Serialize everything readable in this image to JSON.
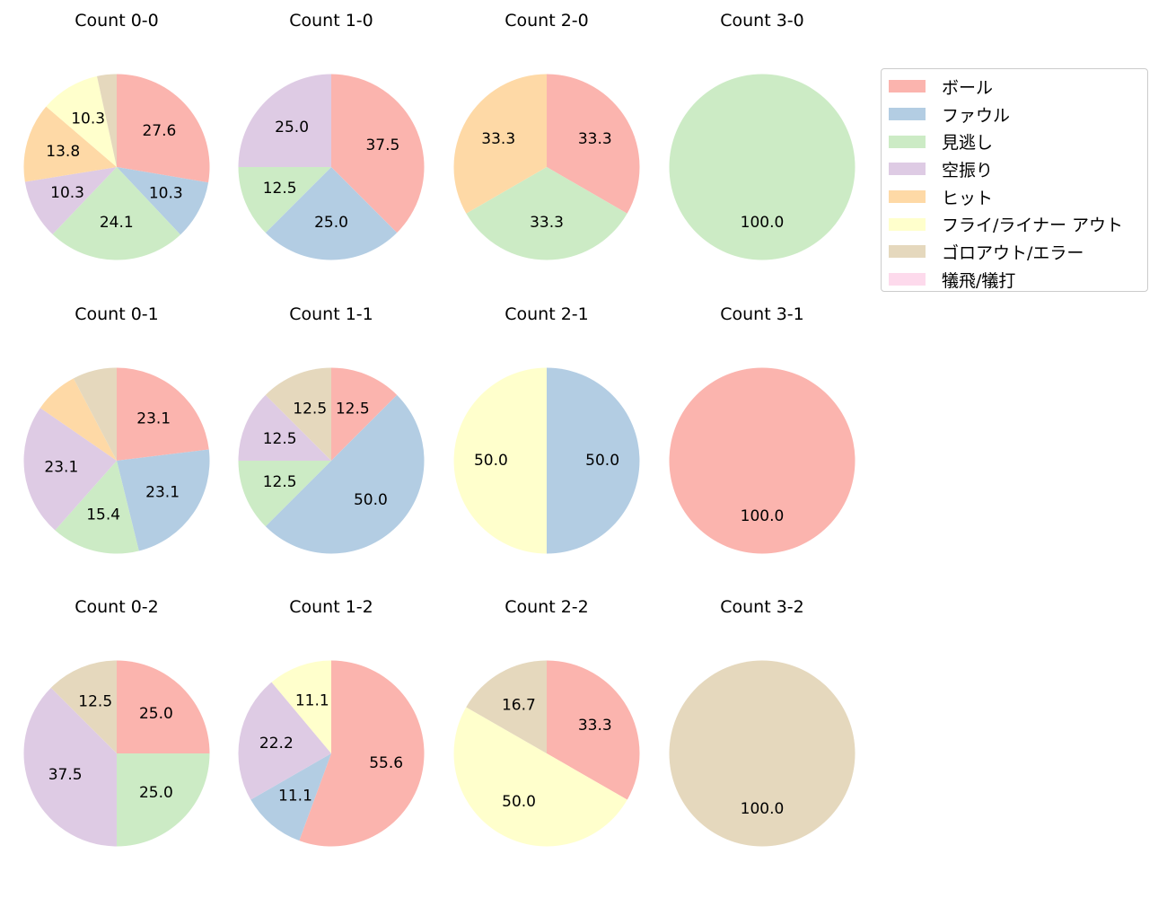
{
  "chart_data": {
    "type": "pie",
    "categories": [
      "ボール",
      "ファウル",
      "見逃し",
      "空振り",
      "ヒット",
      "フライ/ライナー アウト",
      "ゴロアウト/エラー",
      "犠飛/犠打"
    ],
    "colors": [
      "#fbb4ae",
      "#b3cde3",
      "#ccebc5",
      "#decbe4",
      "#fed9a6",
      "#ffffcc",
      "#e5d8bd",
      "#fddaec"
    ],
    "legend_position": "top-right",
    "charts": [
      {
        "title": "Count 0-0",
        "values": [
          27.6,
          10.3,
          24.1,
          10.3,
          13.8,
          10.3,
          3.4,
          0
        ]
      },
      {
        "title": "Count 1-0",
        "values": [
          37.5,
          25.0,
          12.5,
          25.0,
          0,
          0,
          0,
          0
        ]
      },
      {
        "title": "Count 2-0",
        "values": [
          33.3,
          0,
          33.3,
          0,
          33.3,
          0,
          0,
          0
        ]
      },
      {
        "title": "Count 3-0",
        "values": [
          0,
          0,
          100.0,
          0,
          0,
          0,
          0,
          0
        ]
      },
      {
        "title": "Count 0-1",
        "values": [
          23.1,
          23.1,
          15.4,
          23.1,
          7.7,
          0,
          7.7,
          0
        ]
      },
      {
        "title": "Count 1-1",
        "values": [
          12.5,
          50.0,
          12.5,
          12.5,
          0,
          0,
          12.5,
          0
        ]
      },
      {
        "title": "Count 2-1",
        "values": [
          0,
          50.0,
          0,
          0,
          0,
          50.0,
          0,
          0
        ]
      },
      {
        "title": "Count 3-1",
        "values": [
          100.0,
          0,
          0,
          0,
          0,
          0,
          0,
          0
        ]
      },
      {
        "title": "Count 0-2",
        "values": [
          25.0,
          0,
          25.0,
          37.5,
          0,
          0,
          12.5,
          0
        ]
      },
      {
        "title": "Count 1-2",
        "values": [
          55.6,
          11.1,
          0,
          22.2,
          0,
          11.1,
          0,
          0
        ]
      },
      {
        "title": "Count 2-2",
        "values": [
          33.3,
          0,
          0,
          0,
          0,
          50.0,
          16.7,
          0
        ]
      },
      {
        "title": "Count 3-2",
        "values": [
          0,
          0,
          0,
          0,
          0,
          0,
          100.0,
          0
        ]
      }
    ],
    "min_label_value": 10
  }
}
